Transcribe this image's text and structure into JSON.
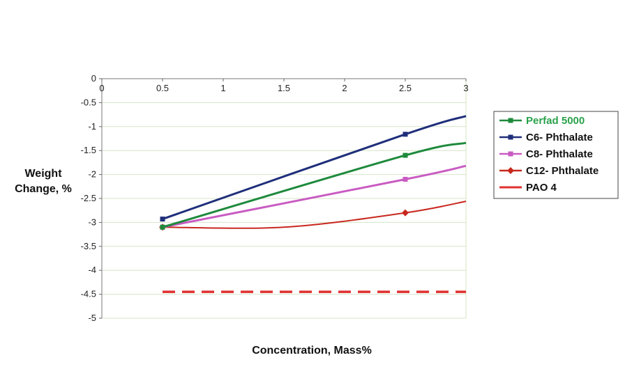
{
  "chart_data": {
    "type": "line",
    "xlabel": "Concentration, Mass%",
    "ylabel": [
      "Weight",
      "Change, %"
    ],
    "x_ticks": [
      "0",
      "0.5",
      "1",
      "1.5",
      "2",
      "2.5",
      "3"
    ],
    "y_ticks": [
      "0",
      "-0.5",
      "-1",
      "-1.5",
      "-2",
      "-2.5",
      "-3",
      "-3.5",
      "-4",
      "-4.5",
      "-5"
    ],
    "xlim": [
      0,
      3
    ],
    "ylim": [
      -5,
      0
    ],
    "grid": true,
    "legend_position": "right",
    "series": [
      {
        "name": "Perfad 5000",
        "color": "#1e8a3c",
        "legend_text_color": "#2aa14a",
        "marker": "square",
        "style": "smooth",
        "points": [
          [
            0.5,
            -3.1
          ],
          [
            2.5,
            -1.6
          ],
          [
            3.0,
            -1.34
          ]
        ],
        "marker_x": [
          0.5,
          2.5
        ]
      },
      {
        "name": "C6- Phthalate",
        "color": "#1f2f7a",
        "legend_text_color": "#111111",
        "marker": "square",
        "style": "smooth",
        "points": [
          [
            0.5,
            -2.93
          ],
          [
            2.5,
            -1.16
          ],
          [
            3.0,
            -0.78
          ]
        ],
        "marker_x": [
          0.5,
          2.5
        ]
      },
      {
        "name": "C8- Phthalate",
        "color": "#c95bc2",
        "legend_text_color": "#111111",
        "marker": "square",
        "style": "smooth",
        "points": [
          [
            0.5,
            -3.1
          ],
          [
            2.5,
            -2.1
          ],
          [
            3.0,
            -1.82
          ]
        ],
        "marker_x": [
          0.5,
          2.5
        ]
      },
      {
        "name": "C12- Phthalate",
        "color": "#c8281e",
        "legend_text_color": "#111111",
        "marker": "diamond",
        "style": "smooth",
        "points": [
          [
            0.5,
            -3.1
          ],
          [
            1.5,
            -3.1
          ],
          [
            2.5,
            -2.8
          ],
          [
            3.0,
            -2.56
          ]
        ],
        "marker_x": [
          0.5,
          2.5
        ]
      },
      {
        "name": "PAO 4",
        "color": "#e03030",
        "legend_text_color": "#111111",
        "marker": "none",
        "style": "dashed",
        "points": [
          [
            0.5,
            -4.45
          ],
          [
            3.0,
            -4.45
          ]
        ],
        "marker_x": []
      }
    ]
  }
}
